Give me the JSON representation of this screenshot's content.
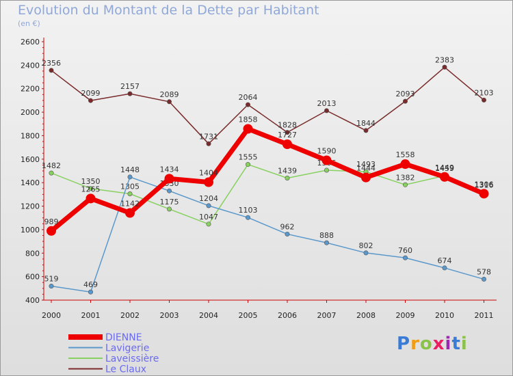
{
  "title": "Evolution du Montant de la Dette par Habitant",
  "subtitle": "(en €)",
  "logo": {
    "letters": [
      "P",
      "r",
      "o",
      "x",
      "i",
      "t",
      "i"
    ],
    "colors": [
      "#3a7bd5",
      "#f39c12",
      "#8bc34a",
      "#e91e63",
      "#9c27b0",
      "#3a7bd5",
      "#8bc34a"
    ]
  },
  "chart_data": {
    "type": "line",
    "x": [
      "2000",
      "2001",
      "2002",
      "2003",
      "2004",
      "2005",
      "2006",
      "2007",
      "2008",
      "2009",
      "2010",
      "2011"
    ],
    "ylim": [
      400,
      2600
    ],
    "yticks": [
      "400",
      "600",
      "800",
      "1000",
      "1200",
      "1400",
      "1600",
      "1800",
      "2000",
      "2200",
      "2400",
      "2600"
    ],
    "grid": false,
    "legend_position": "bottom-left",
    "series": [
      {
        "name": "Le Claux",
        "color": "#7a2a2a",
        "values": [
          2356,
          2099,
          2157,
          2089,
          1731,
          2064,
          1828,
          2013,
          1844,
          2093,
          2383,
          2103
        ],
        "labels": [
          "2356",
          "2099",
          "2157",
          "2089",
          "1731",
          "2064",
          "1828",
          "2013",
          "1844",
          "2093",
          "2383",
          "2103"
        ]
      },
      {
        "name": "Laveissière",
        "color": "#88d060",
        "values": [
          1482,
          1350,
          1305,
          1175,
          1047,
          1555,
          1439,
          1506,
          1493,
          1382,
          1459,
          1316
        ],
        "labels": [
          "1482",
          "1350",
          "1305",
          "1175",
          "1047",
          "1555",
          "1439",
          "1506",
          "1493",
          "1382",
          "1459",
          "1316"
        ]
      },
      {
        "name": "Lavigerie",
        "color": "#5a98cc",
        "values": [
          519,
          469,
          1448,
          1330,
          1204,
          1103,
          962,
          888,
          802,
          760,
          674,
          578
        ],
        "labels": [
          "519",
          "469",
          "1448",
          "1330",
          "1204",
          "1103",
          "962",
          "888",
          "802",
          "760",
          "674",
          "578"
        ]
      },
      {
        "name": "DIENNE",
        "color": "#ee0000",
        "values": [
          989,
          1265,
          1142,
          1434,
          1404,
          1858,
          1727,
          1590,
          1444,
          1558,
          1449,
          1306
        ],
        "labels": [
          "989",
          "1265",
          "1142",
          "1434",
          "1404",
          "1858",
          "1727",
          "1590",
          "1444",
          "1558",
          "1449",
          "1306"
        ]
      }
    ],
    "legend": [
      "DIENNE",
      "Lavigerie",
      "Laveissière",
      "Le Claux"
    ]
  }
}
